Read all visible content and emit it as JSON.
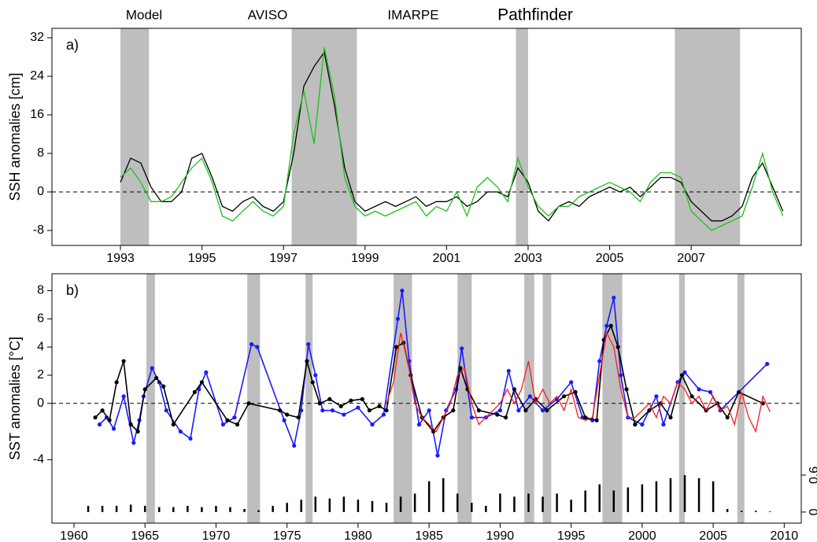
{
  "chart_data": [
    {
      "type": "line",
      "panel_label": "a)",
      "ylabel": "SSH anomalies [cm]",
      "x": [
        1993,
        1993.25,
        1993.5,
        1993.75,
        1994,
        1994.25,
        1994.5,
        1994.75,
        1995,
        1995.25,
        1995.5,
        1995.75,
        1996,
        1996.25,
        1996.5,
        1996.75,
        1997,
        1997.25,
        1997.5,
        1997.75,
        1998,
        1998.25,
        1998.5,
        1998.75,
        1999,
        1999.25,
        1999.5,
        1999.75,
        2000,
        2000.25,
        2000.5,
        2000.75,
        2001,
        2001.25,
        2001.5,
        2001.75,
        2002,
        2002.25,
        2002.5,
        2002.75,
        2003,
        2003.25,
        2003.5,
        2003.75,
        2004,
        2004.25,
        2004.5,
        2004.75,
        2005,
        2005.25,
        2005.5,
        2005.75,
        2006,
        2006.25,
        2006.5,
        2006.75,
        2007,
        2007.25,
        2007.5,
        2007.75,
        2008,
        2008.25,
        2008.5,
        2008.75,
        2009,
        2009.25
      ],
      "series": [
        {
          "name": "Model",
          "color": "#000000",
          "values": [
            2,
            7,
            6,
            1,
            -2,
            -2,
            0,
            7,
            8,
            3,
            -3,
            -4,
            -2,
            -1,
            -3,
            -4,
            -2,
            8,
            22,
            26,
            29,
            18,
            5,
            -2,
            -4,
            -3,
            -2,
            -3,
            -2,
            -1,
            -3,
            -2,
            -2,
            -1,
            -3,
            -2,
            0,
            0,
            -1,
            5,
            2,
            -4,
            -6,
            -3,
            -2,
            -3,
            -1,
            0,
            1,
            0,
            1,
            -1,
            1,
            3,
            3,
            2,
            -2,
            -4,
            -6,
            -6,
            -5,
            -3,
            3,
            6,
            1,
            -4
          ]
        },
        {
          "name": "AVISO",
          "color": "#1fbf1f",
          "values": [
            3,
            5,
            2,
            -2,
            -2,
            -1,
            2,
            5,
            7,
            2,
            -5,
            -6,
            -4,
            -2,
            -4,
            -5,
            -3,
            12,
            21,
            10,
            30,
            20,
            3,
            -3,
            -5,
            -4,
            -5,
            -4,
            -3,
            -2,
            -5,
            -3,
            -4,
            0,
            -5,
            1,
            3,
            1,
            -2,
            7,
            1,
            -3,
            -5,
            -3,
            -3,
            -1,
            0,
            1,
            2,
            1,
            0,
            -2,
            2,
            4,
            4,
            3,
            -4,
            -6,
            -8,
            -7,
            -6,
            -5,
            1,
            8,
            0,
            -5
          ]
        }
      ],
      "shaded_periods": [
        [
          1993,
          1993.7
        ],
        [
          1997.2,
          1998.8
        ],
        [
          2002.7,
          2003.0
        ],
        [
          2006.6,
          2008.2
        ]
      ],
      "hline": 0,
      "xlim": [
        1991.32,
        2009.7
      ],
      "ylim": [
        -11.1,
        33.96
      ],
      "xticks": [
        1993,
        1995,
        1997,
        1999,
        2001,
        2003,
        2005,
        2007
      ],
      "yticks": [
        -8,
        0,
        8,
        16,
        24,
        32
      ]
    },
    {
      "type": "scatter",
      "panel_label": "b)",
      "ylabel": "SST anomalies [°C]",
      "series": [
        {
          "name": "IMARPE",
          "color": "#1a1aff",
          "style": "points-line",
          "x": [
            1961.8,
            1962.3,
            1962.8,
            1963.5,
            1964.2,
            1964.6,
            1964.9,
            1965.5,
            1966.0,
            1966.5,
            1967.5,
            1968.2,
            1968.8,
            1969.3,
            1970.5,
            1971.3,
            1972.5,
            1972.9,
            1974.8,
            1975.5,
            1976.0,
            1976.5,
            1977.0,
            1977.5,
            1978.2,
            1979.0,
            1980.0,
            1981.0,
            1981.8,
            1982.8,
            1983.1,
            1983.6,
            1984.3,
            1985.0,
            1985.6,
            1986.2,
            1986.9,
            1987.3,
            1988.0,
            1989.0,
            1990.0,
            1990.6,
            1991.3,
            1992.1,
            1993.0,
            1994.0,
            1995.0,
            1995.8,
            1996.5,
            1997.0,
            1997.5,
            1998.0,
            1998.5,
            1999.0,
            2000.0,
            2001.0,
            2001.5,
            2002.5,
            2003.0,
            2004.0,
            2004.8,
            2005.5,
            2008.8
          ],
          "values": [
            -1.5,
            -1,
            -1.8,
            0.5,
            -2.8,
            -1.2,
            0.5,
            2.5,
            1.5,
            -0.5,
            -2,
            -2.5,
            1,
            2.2,
            -1.5,
            -1,
            4.2,
            4,
            -1.2,
            -3,
            -0.5,
            4.2,
            2,
            -0.5,
            -0.5,
            -0.8,
            -0.3,
            -1.5,
            -0.8,
            6,
            8,
            3,
            -1.5,
            -0.5,
            -3.7,
            -0.5,
            1,
            3.9,
            -1,
            -1,
            -0.5,
            2.3,
            -0.5,
            0.5,
            -0.5,
            0.3,
            1.5,
            -1,
            -1.2,
            3,
            5.5,
            7.5,
            2,
            -1,
            -1.5,
            0.5,
            -1.5,
            1.5,
            2.2,
            1,
            0.8,
            -0.5,
            2.8
          ]
        },
        {
          "color": "#000000",
          "style": "points-line",
          "x": [
            1961.5,
            1962.0,
            1962.5,
            1963.0,
            1963.5,
            1964.0,
            1964.5,
            1965.0,
            1965.8,
            1966.3,
            1967.0,
            1968.5,
            1969.0,
            1970.8,
            1971.5,
            1972.3,
            1974.5,
            1975.0,
            1975.8,
            1976.4,
            1976.8,
            1977.3,
            1978.0,
            1978.8,
            1979.5,
            1980.3,
            1980.8,
            1981.5,
            1982.0,
            1982.7,
            1983.2,
            1983.7,
            1984.5,
            1985.3,
            1986.0,
            1986.7,
            1987.2,
            1987.7,
            1988.5,
            1989.8,
            1990.4,
            1991.0,
            1991.8,
            1992.5,
            1993.3,
            1994.5,
            1995.3,
            1996.0,
            1996.8,
            1997.3,
            1997.8,
            1998.3,
            1998.9,
            1999.5,
            2000.5,
            2001.3,
            2002.0,
            2002.8,
            2003.5,
            2004.5,
            2005.3,
            2006.0,
            2006.8,
            2008.5
          ],
          "values": [
            -1,
            -0.5,
            -1.2,
            1.5,
            3,
            -1.5,
            -2,
            1,
            1.8,
            1.2,
            -1.5,
            0.8,
            1.5,
            -1.2,
            -1.5,
            0,
            -0.5,
            -0.8,
            -1,
            3,
            1.5,
            0,
            0.3,
            -0.2,
            0.2,
            0.3,
            -0.5,
            -0.2,
            -0.5,
            4,
            4.3,
            2,
            -1,
            -2,
            -1,
            -0.5,
            2.5,
            1,
            -0.5,
            -0.8,
            -1,
            1,
            -0.5,
            0.3,
            -0.5,
            0.5,
            0.8,
            -1,
            -1.2,
            4.5,
            5.5,
            4,
            1,
            -1.5,
            -0.5,
            0,
            -1,
            2,
            0.5,
            -0.5,
            0,
            -1,
            0.8,
            0
          ]
        },
        {
          "name": "Pathfinder",
          "color": "#ff1a1a",
          "style": "line",
          "x": [
            1982,
            1982.5,
            1983,
            1983.5,
            1984,
            1984.5,
            1985,
            1985.5,
            1986,
            1986.5,
            1987,
            1987.5,
            1988,
            1988.5,
            1989,
            1989.5,
            1990,
            1990.5,
            1991,
            1991.5,
            1992,
            1992.5,
            1993,
            1993.5,
            1994,
            1994.5,
            1995,
            1995.5,
            1996,
            1996.5,
            1997,
            1997.5,
            1998,
            1998.5,
            1999,
            1999.5,
            2000,
            2000.5,
            2001,
            2001.5,
            2002,
            2002.5,
            2003,
            2003.5,
            2004,
            2004.5,
            2005,
            2005.5,
            2006,
            2006.5,
            2007,
            2007.5,
            2008,
            2008.5,
            2009
          ],
          "values": [
            0,
            1.5,
            5,
            3,
            0,
            -1,
            -1.5,
            -2,
            -1,
            0,
            2,
            2.5,
            0,
            -1.5,
            -1,
            -0.5,
            0,
            1,
            0,
            1,
            3,
            0,
            1,
            0,
            0.5,
            -0.5,
            1,
            -1,
            -1.2,
            -1,
            2,
            5,
            4,
            1,
            -1,
            -1,
            -0.5,
            0,
            -1,
            0.5,
            0,
            1.5,
            1,
            0,
            0.5,
            -0.5,
            0.5,
            -0.5,
            -0.2,
            -1.5,
            0.8,
            -1,
            -2,
            0.5,
            -0.6
          ]
        },
        {
          "color": "#000000",
          "style": "bars",
          "axis": "y2",
          "x": [
            1961,
            1962,
            1963,
            1964,
            1965,
            1966,
            1967,
            1968,
            1969,
            1970,
            1971,
            1972,
            1973,
            1974,
            1975,
            1976,
            1977,
            1978,
            1979,
            1980,
            1981,
            1982,
            1983,
            1984,
            1985,
            1986,
            1987,
            1988,
            1989,
            1990,
            1991,
            1992,
            1993,
            1994,
            1995,
            1996,
            1997,
            1998,
            1999,
            2000,
            2001,
            2002,
            2003,
            2004,
            2005,
            2006,
            2007,
            2008,
            2009
          ],
          "values": [
            0.1,
            0.1,
            0.1,
            0.12,
            0.1,
            0.08,
            0.08,
            0.1,
            0.08,
            0.1,
            0.08,
            0.05,
            0.03,
            0.1,
            0.15,
            0.2,
            0.25,
            0.22,
            0.25,
            0.2,
            0.18,
            0.15,
            0.25,
            0.3,
            0.5,
            0.55,
            0.3,
            0.15,
            0.1,
            0.3,
            0.25,
            0.3,
            0.25,
            0.3,
            0.2,
            0.35,
            0.45,
            0.35,
            0.4,
            0.45,
            0.5,
            0.55,
            0.6,
            0.55,
            0.5,
            0.05,
            0.02,
            0.02,
            0.01
          ]
        }
      ],
      "shaded_periods": [
        [
          1965.1,
          1965.7
        ],
        [
          1972.2,
          1973.1
        ],
        [
          1976.3,
          1976.8
        ],
        [
          1982.5,
          1983.8
        ],
        [
          1987.0,
          1988.0
        ],
        [
          1991.7,
          1992.4
        ],
        [
          1993.0,
          1993.6
        ],
        [
          1997.2,
          1998.6
        ],
        [
          2002.6,
          2003.0
        ],
        [
          2006.7,
          2007.2
        ]
      ],
      "hline": 0,
      "xlim": [
        1958.45,
        2011.2
      ],
      "ylim": [
        -8.5,
        9.2
      ],
      "y2lim": [
        -0.18,
        3.87
      ],
      "xticks": [
        1960,
        1965,
        1970,
        1975,
        1980,
        1985,
        1990,
        1995,
        2000,
        2005,
        2010
      ],
      "yticks": [
        -4,
        0,
        2,
        4,
        6,
        8
      ],
      "y2ticks": [
        0,
        0.6
      ]
    }
  ]
}
